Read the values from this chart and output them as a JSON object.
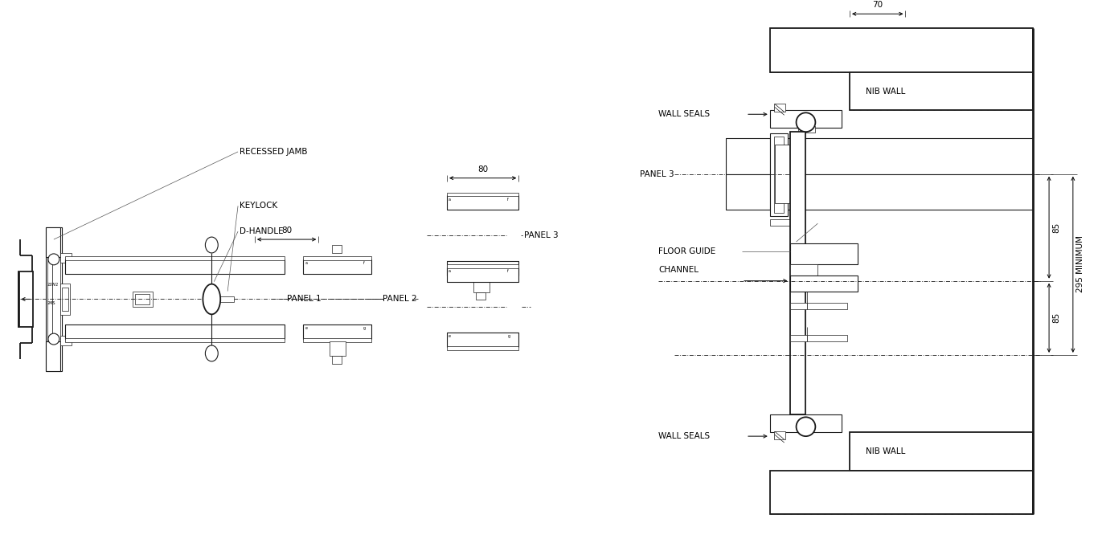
{
  "bg_color": "#ffffff",
  "line_color": "#1a1a1a",
  "labels": {
    "recessed_jamb": "RECESSED JAMB",
    "keylock": "KEYLOCK",
    "d_handle": "D-HANDLE",
    "panel1": "PANEL 1",
    "panel2": "PANEL 2",
    "panel3": "PANEL 3",
    "wall_seals_top": "WALL SEALS",
    "wall_seals_bot": "WALL SEALS",
    "nib_wall_top": "NIB WALL",
    "nib_wall_bot": "NIB WALL",
    "floor_guide": "FLOOR GUIDE",
    "channel": "CHANNEL",
    "dim_70": "70",
    "dim_80_left": "80",
    "dim_80_mid": "80",
    "dim_85_top": "85",
    "dim_85_bot": "85",
    "dim_295": "295 MINIMUM"
  },
  "font_size": 7.5
}
